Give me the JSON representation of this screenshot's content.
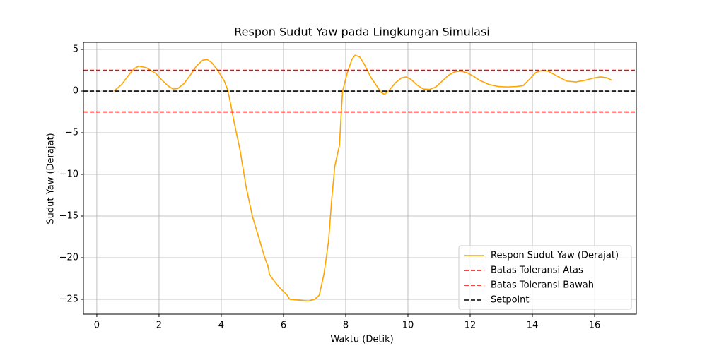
{
  "chart_data": {
    "type": "line",
    "title": "Respon Sudut Yaw pada Lingkungan Simulasi",
    "xlabel": "Waktu (Detik)",
    "ylabel": "Sudut Yaw (Derajat)",
    "series": [
      {
        "name": "Respon Sudut Yaw (Derajat)",
        "color": "#ffa500",
        "x": [
          0.55,
          0.8,
          1.0,
          1.2,
          1.35,
          1.6,
          1.9,
          2.1,
          2.3,
          2.45,
          2.6,
          2.8,
          3.0,
          3.2,
          3.4,
          3.55,
          3.7,
          3.9,
          4.1,
          4.2,
          4.3,
          4.4,
          4.6,
          4.8,
          5.0,
          5.2,
          5.4,
          5.5,
          5.55,
          5.7,
          5.9,
          6.1,
          6.2,
          6.5,
          6.8,
          7.0,
          7.15,
          7.3,
          7.45,
          7.55,
          7.65,
          7.8,
          7.85,
          7.9,
          8.05,
          8.2,
          8.3,
          8.45,
          8.6,
          8.8,
          9.0,
          9.15,
          9.25,
          9.4,
          9.6,
          9.8,
          9.95,
          10.1,
          10.3,
          10.5,
          10.7,
          10.9,
          11.1,
          11.3,
          11.5,
          11.7,
          11.9,
          12.1,
          12.3,
          12.6,
          12.9,
          13.2,
          13.5,
          13.7,
          13.9,
          14.1,
          14.3,
          14.5,
          14.7,
          14.9,
          15.1,
          15.4,
          15.7,
          16.0,
          16.2,
          16.4,
          16.55
        ],
        "values": [
          0,
          0.8,
          1.8,
          2.7,
          3.0,
          2.8,
          2.1,
          1.3,
          0.6,
          0.25,
          0.3,
          0.9,
          1.9,
          3.0,
          3.7,
          3.8,
          3.4,
          2.4,
          1.2,
          0.2,
          -1.5,
          -3.5,
          -7,
          -11.5,
          -15,
          -17.5,
          -20,
          -21,
          -22,
          -22.8,
          -23.7,
          -24.4,
          -25.0,
          -25.1,
          -25.2,
          -25.0,
          -24.5,
          -22,
          -18,
          -13,
          -9,
          -6.5,
          -3,
          0,
          2.2,
          3.8,
          4.3,
          4.1,
          3.2,
          1.7,
          0.6,
          -0.2,
          -0.4,
          0.1,
          1.0,
          1.6,
          1.7,
          1.4,
          0.7,
          0.25,
          0.2,
          0.5,
          1.2,
          1.9,
          2.3,
          2.4,
          2.2,
          1.8,
          1.3,
          0.8,
          0.55,
          0.5,
          0.55,
          0.65,
          1.4,
          2.2,
          2.5,
          2.4,
          2.0,
          1.6,
          1.2,
          1.1,
          1.3,
          1.6,
          1.7,
          1.6,
          1.3
        ]
      }
    ],
    "reference_lines": [
      {
        "name": "Batas Toleransi Atas",
        "color": "#ff0000",
        "y": 2.5
      },
      {
        "name": "Batas Toleransi Bawah",
        "color": "#ff0000",
        "y": -2.5
      },
      {
        "name": "Setpoint",
        "color": "#000000",
        "y": 0
      }
    ],
    "xlim": [
      -0.43,
      17.34
    ],
    "ylim": [
      -26.78,
      5.85
    ],
    "xticks": [
      0,
      2,
      4,
      6,
      8,
      10,
      12,
      14,
      16
    ],
    "yticks": [
      {
        "value": -25,
        "label": "−25"
      },
      {
        "value": -20,
        "label": "−20"
      },
      {
        "value": -15,
        "label": "−15"
      },
      {
        "value": -10,
        "label": "−10"
      },
      {
        "value": -5,
        "label": "−5"
      },
      0,
      5
    ],
    "grid": true,
    "legend": "lower right"
  }
}
